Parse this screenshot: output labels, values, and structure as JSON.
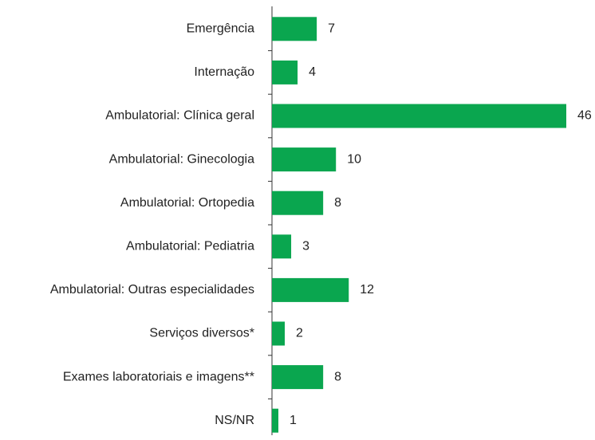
{
  "chart_data": {
    "type": "bar",
    "orientation": "horizontal",
    "categories": [
      "Emergência",
      "Internação",
      "Ambulatorial: Clínica geral",
      "Ambulatorial: Ginecologia",
      "Ambulatorial: Ortopedia",
      "Ambulatorial: Pediatria",
      "Ambulatorial: Outras especialidades",
      "Serviços diversos*",
      "Exames laboratoriais e imagens**",
      "NS/NR"
    ],
    "values": [
      7,
      4,
      46,
      10,
      8,
      3,
      12,
      2,
      8,
      1
    ],
    "color": "#0aa64f"
  }
}
